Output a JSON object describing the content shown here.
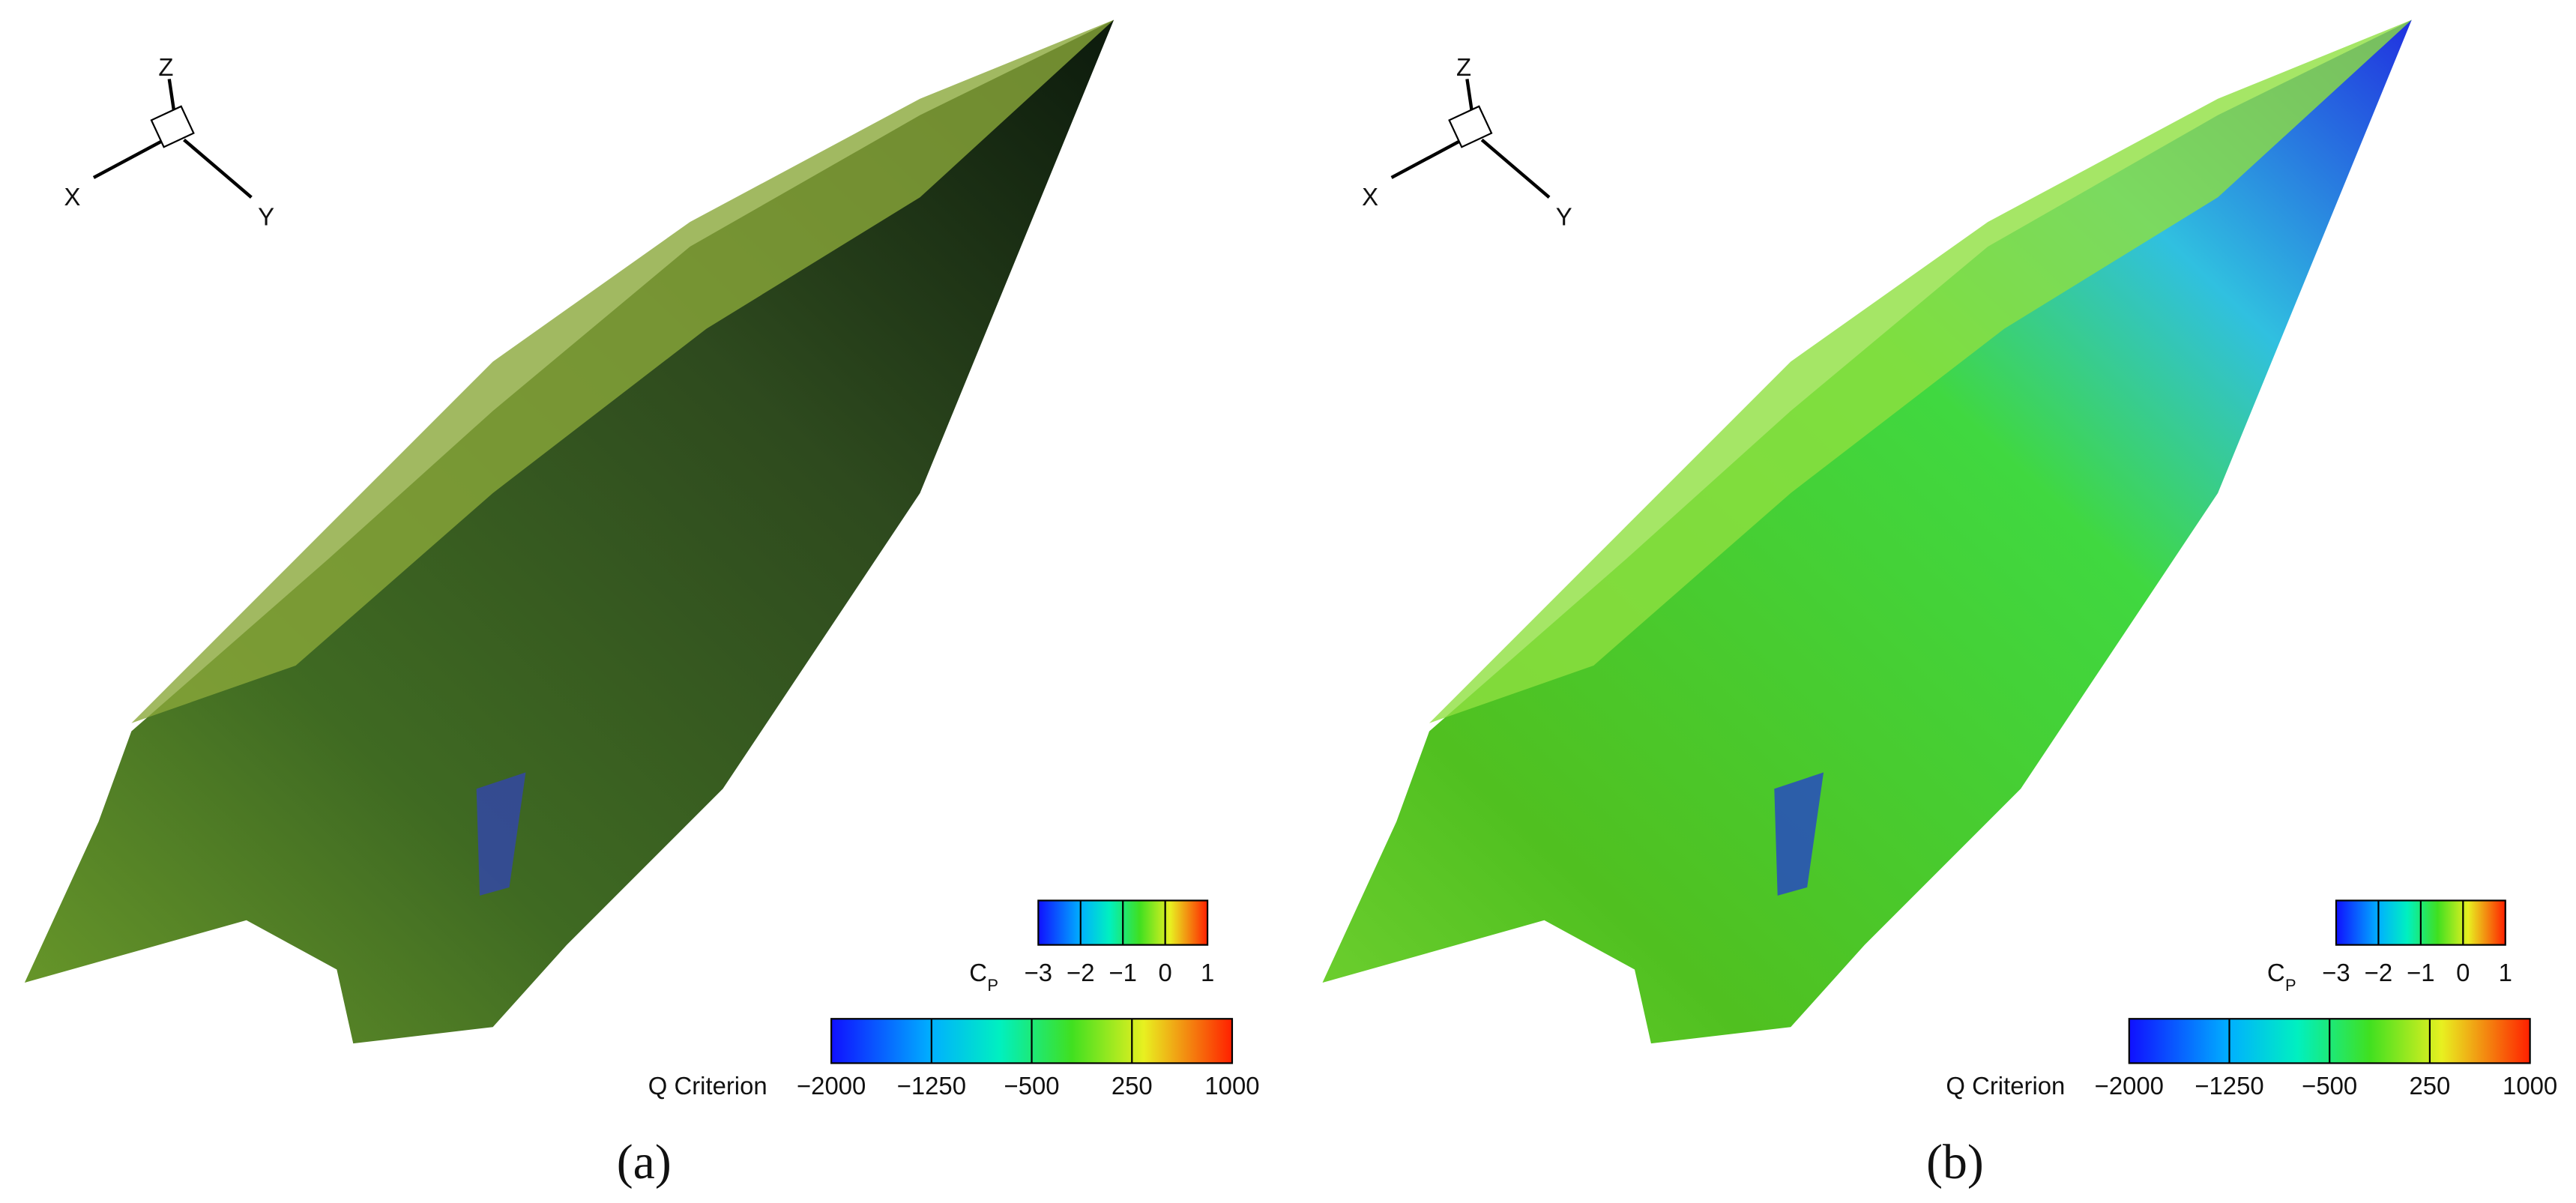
{
  "panels": [
    {
      "label": "(a)",
      "triad": {
        "x": "X",
        "y": "Y",
        "z": "Z"
      },
      "cp_legend": {
        "title": "C",
        "subscript": "P",
        "ticks": [
          "−3",
          "−2",
          "−1",
          "0",
          "1"
        ]
      },
      "q_legend": {
        "title": "Q Criterion",
        "ticks": [
          "−2000",
          "−1250",
          "−500",
          "250",
          "1000"
        ]
      }
    },
    {
      "label": "(b)",
      "triad": {
        "x": "X",
        "y": "Y",
        "z": "Z"
      },
      "cp_legend": {
        "title": "C",
        "subscript": "P",
        "ticks": [
          "−3",
          "−2",
          "−1",
          "0",
          "1"
        ]
      },
      "q_legend": {
        "title": "Q Criterion",
        "ticks": [
          "−2000",
          "−1250",
          "−500",
          "250",
          "1000"
        ]
      }
    }
  ]
}
